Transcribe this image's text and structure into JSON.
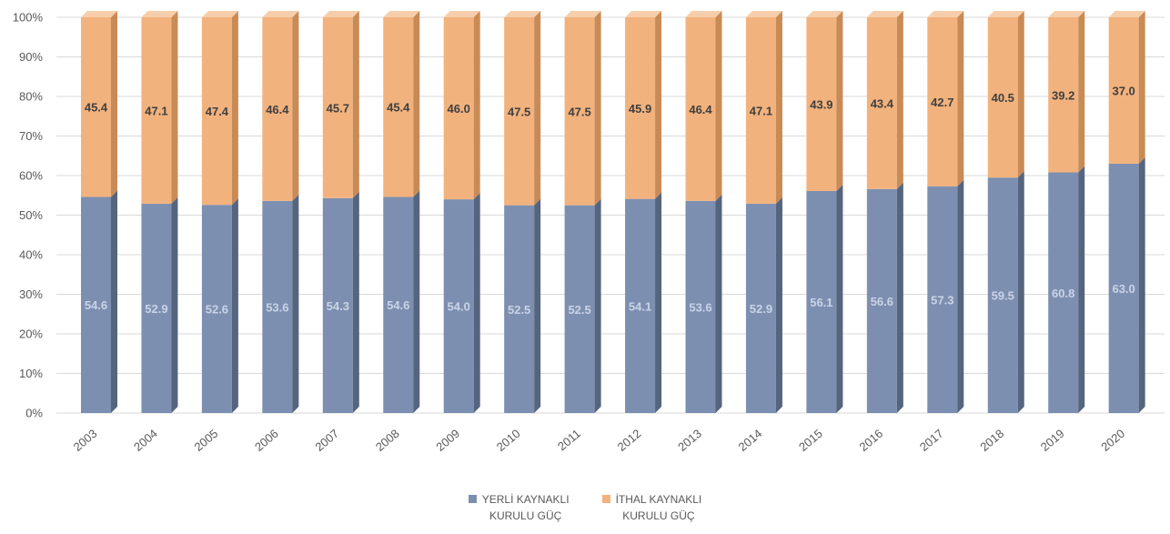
{
  "chart_data": {
    "type": "bar",
    "stacked": true,
    "percent": true,
    "style": "3d-column",
    "categories": [
      "2003",
      "2004",
      "2005",
      "2006",
      "2007",
      "2008",
      "2009",
      "2010",
      "2011",
      "2012",
      "2013",
      "2014",
      "2015",
      "2016",
      "2017",
      "2018",
      "2019",
      "2020"
    ],
    "series": [
      {
        "name": "YERLİ KAYNAKLI KURULU GÜÇ",
        "color": "#7d8fb0",
        "values": [
          54.6,
          52.9,
          52.6,
          53.6,
          54.3,
          54.6,
          54.0,
          52.5,
          52.5,
          54.1,
          53.6,
          52.9,
          56.1,
          56.6,
          57.3,
          59.5,
          60.8,
          63.0
        ],
        "labels": [
          "54.6",
          "52.9",
          "52.6",
          "53.6",
          "54.3",
          "54.6",
          "54.0",
          "52.5",
          "52.5",
          "54.1",
          "53.6",
          "52.9",
          "56.1",
          "56.6",
          "57.3",
          "59.5",
          "60.8",
          "63.0"
        ]
      },
      {
        "name": "İTHAL KAYNAKLI KURULU GÜÇ",
        "color": "#f2b27d",
        "values": [
          45.4,
          47.1,
          47.4,
          46.4,
          45.7,
          45.4,
          46.0,
          47.5,
          47.5,
          45.9,
          46.4,
          47.1,
          43.9,
          43.4,
          42.7,
          40.5,
          39.2,
          37.0
        ],
        "labels": [
          "45.4",
          "47.1",
          "47.4",
          "46.4",
          "45.7",
          "45.4",
          "46.0",
          "47.5",
          "47.5",
          "45.9",
          "46.4",
          "47.1",
          "43.9",
          "43.4",
          "42.7",
          "40.5",
          "39.2",
          "37.0"
        ]
      }
    ],
    "yticks": [
      "0%",
      "10%",
      "20%",
      "30%",
      "40%",
      "50%",
      "60%",
      "70%",
      "80%",
      "90%",
      "100%"
    ],
    "ylim": [
      0,
      100
    ],
    "grid": true,
    "legend_position": "bottom"
  },
  "legend": {
    "series1": "YERLİ KAYNAKLI\nKURULU GÜÇ",
    "series2": "İTHAL KAYNAKLI\nKURULU GÜÇ"
  },
  "colors": {
    "blue_front": "#7d8fb0",
    "blue_side": "#55657f",
    "blue_top": "#a3b1c9",
    "orange_front": "#f2b27d",
    "orange_side": "#c98b56",
    "orange_top": "#f7ceab",
    "grid": "#d9d9d9"
  }
}
